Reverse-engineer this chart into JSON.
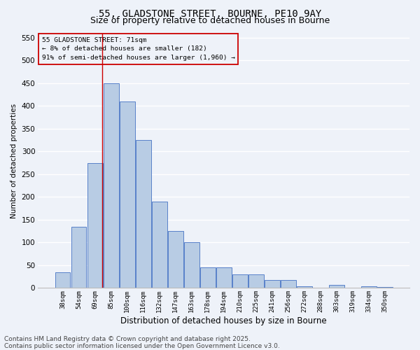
{
  "title_line1": "55, GLADSTONE STREET, BOURNE, PE10 9AY",
  "title_line2": "Size of property relative to detached houses in Bourne",
  "xlabel": "Distribution of detached houses by size in Bourne",
  "ylabel": "Number of detached properties",
  "categories": [
    "38sqm",
    "54sqm",
    "69sqm",
    "85sqm",
    "100sqm",
    "116sqm",
    "132sqm",
    "147sqm",
    "163sqm",
    "178sqm",
    "194sqm",
    "210sqm",
    "225sqm",
    "241sqm",
    "256sqm",
    "272sqm",
    "288sqm",
    "303sqm",
    "319sqm",
    "334sqm",
    "350sqm"
  ],
  "values": [
    35,
    135,
    275,
    450,
    410,
    325,
    190,
    125,
    100,
    45,
    45,
    30,
    30,
    17,
    17,
    3,
    0,
    7,
    0,
    3,
    2
  ],
  "bar_color": "#b8cce4",
  "bar_edge_color": "#4472c4",
  "bg_color": "#eef2f9",
  "grid_color": "#ffffff",
  "annotation_box_text": "55 GLADSTONE STREET: 71sqm\n← 8% of detached houses are smaller (182)\n91% of semi-detached houses are larger (1,960) →",
  "annotation_box_color": "#cc0000",
  "vline_x": 2.45,
  "ylim": [
    0,
    560
  ],
  "yticks": [
    0,
    50,
    100,
    150,
    200,
    250,
    300,
    350,
    400,
    450,
    500,
    550
  ],
  "footer_line1": "Contains HM Land Registry data © Crown copyright and database right 2025.",
  "footer_line2": "Contains public sector information licensed under the Open Government Licence v3.0.",
  "title_fontsize": 10,
  "subtitle_fontsize": 9,
  "footer_fontsize": 6.5,
  "ylabel_fontsize": 7.5,
  "xlabel_fontsize": 8.5
}
